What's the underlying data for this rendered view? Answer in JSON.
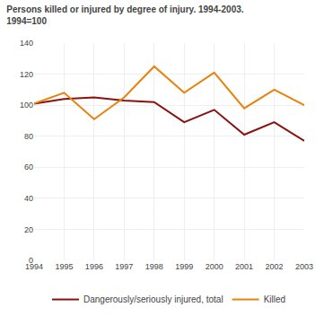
{
  "chart_data": {
    "type": "line",
    "title": "Persons killed or injured by degree of injury. 1994-2003.",
    "subtitle": "1994=100",
    "x": [
      1994,
      1995,
      1996,
      1997,
      1998,
      1999,
      2000,
      2001,
      2002,
      2003
    ],
    "series": [
      {
        "name": "Dangerously/seriously injured, total",
        "color": "#8B1010",
        "values": [
          101,
          104,
          105,
          103,
          102,
          89,
          97,
          81,
          89,
          77
        ]
      },
      {
        "name": "Killed",
        "color": "#E8820A",
        "values": [
          101,
          108,
          91,
          105,
          125,
          108,
          121,
          98,
          110,
          100
        ]
      }
    ],
    "xlim": [
      1994,
      2003
    ],
    "xticks": [
      1994,
      1995,
      1996,
      1997,
      1998,
      1999,
      2000,
      2001,
      2002,
      2003
    ],
    "ylim": [
      0,
      140
    ],
    "yticks": [
      0,
      20,
      40,
      60,
      80,
      100,
      120,
      140
    ],
    "grid": true,
    "legend": "bottom"
  }
}
